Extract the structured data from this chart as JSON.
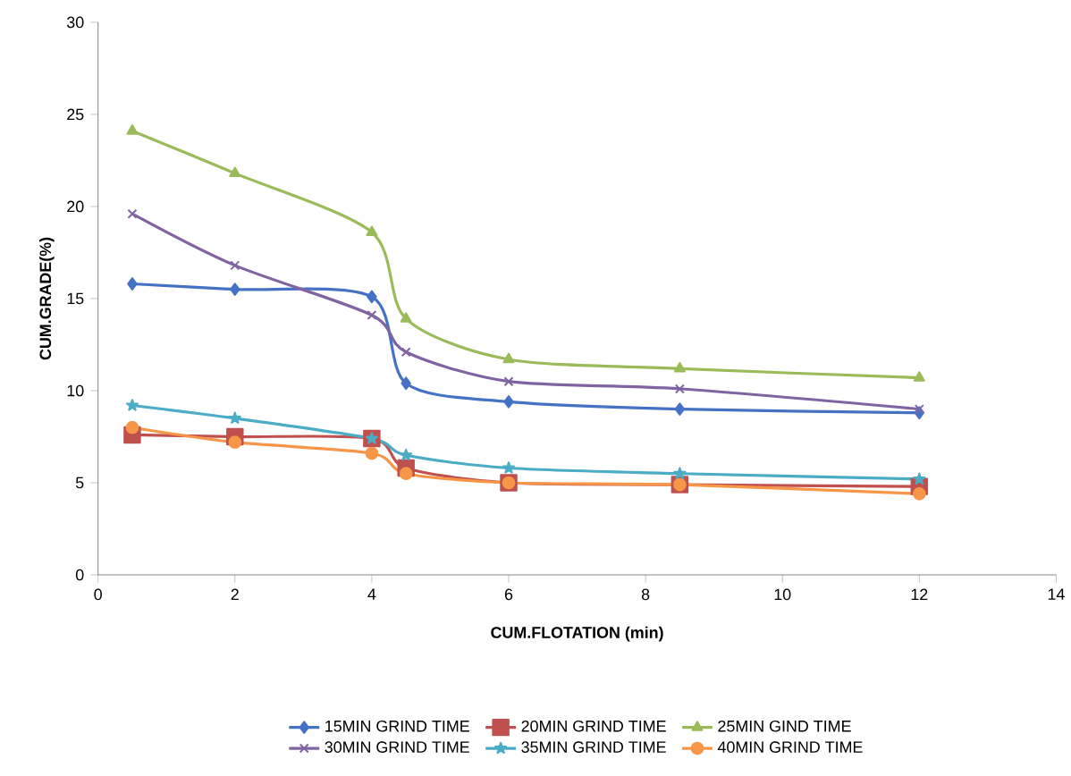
{
  "chart_data": {
    "type": "line",
    "xlabel": "CUM.FLOTATION (min)",
    "ylabel": "CUM.GRADE(%)",
    "x": [
      0.5,
      2,
      4,
      4.5,
      6,
      8.5,
      12
    ],
    "xlim": [
      0,
      14
    ],
    "xticks": [
      0,
      2,
      4,
      6,
      8,
      10,
      12,
      14
    ],
    "ylim": [
      0,
      30
    ],
    "yticks": [
      0,
      5,
      10,
      15,
      20,
      25,
      30
    ],
    "legend": "bottom",
    "line_style": "solid",
    "series": [
      {
        "name": "15MIN GRIND TIME",
        "color": "#4572c4",
        "marker": "diamond",
        "values": [
          15.8,
          15.5,
          15.1,
          10.4,
          9.4,
          9.0,
          8.8
        ]
      },
      {
        "name": "20MIN GRIND TIME",
        "color": "#c0504d",
        "marker": "square",
        "values": [
          7.6,
          7.5,
          7.4,
          5.8,
          5.0,
          4.9,
          4.8
        ]
      },
      {
        "name": "25MIN GIND TIME",
        "color": "#9bbb59",
        "marker": "triangle",
        "values": [
          24.1,
          21.8,
          18.6,
          13.9,
          11.7,
          11.2,
          10.7
        ]
      },
      {
        "name": "30MIN GRIND TIME",
        "color": "#8064a2",
        "marker": "cross",
        "values": [
          19.6,
          16.8,
          14.1,
          12.1,
          10.5,
          10.1,
          9.0
        ]
      },
      {
        "name": "35MIN GRIND TIME",
        "color": "#4bacc6",
        "marker": "star",
        "values": [
          9.2,
          8.5,
          7.4,
          6.5,
          5.8,
          5.5,
          5.2
        ]
      },
      {
        "name": "40MIN GRIND TIME",
        "color": "#f79646",
        "marker": "circle",
        "values": [
          8.0,
          7.2,
          6.6,
          5.5,
          5.0,
          4.9,
          4.4
        ]
      }
    ]
  }
}
